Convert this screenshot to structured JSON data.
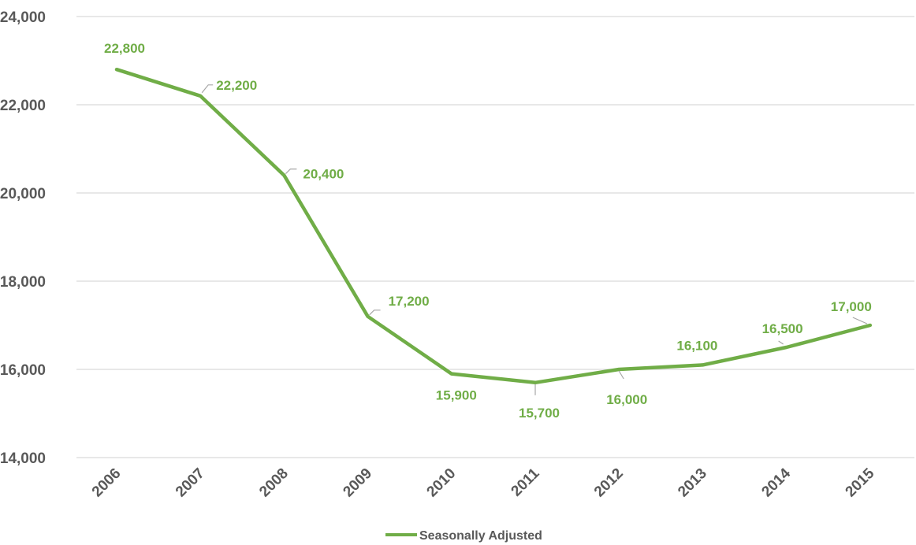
{
  "chart_data": {
    "type": "line",
    "categories": [
      "2006",
      "2007",
      "2008",
      "2009",
      "2010",
      "2011",
      "2012",
      "2013",
      "2014",
      "2015"
    ],
    "series": [
      {
        "name": "Seasonally Adjusted",
        "values": [
          22800,
          22200,
          20400,
          17200,
          15900,
          15700,
          16000,
          16100,
          16500,
          17000
        ],
        "data_labels": [
          "22,800",
          "22,200",
          "20,400",
          "17,200",
          "15,900",
          "15,700",
          "16,000",
          "16,100",
          "16,500",
          "17,000"
        ]
      }
    ],
    "ylim": [
      14000,
      24000
    ],
    "yticks": [
      14000,
      16000,
      18000,
      20000,
      22000,
      24000
    ],
    "ytick_labels": [
      "14,000",
      "16,000",
      "18,000",
      "20,000",
      "22,000",
      "24,000"
    ],
    "grid": "horizontal",
    "legend": "bottom-center",
    "title": "",
    "xlabel": "",
    "ylabel": "",
    "colors": {
      "series": "#70ad47",
      "grid": "#d9d9d9",
      "text": "#595959",
      "leader": "#a6a6a6"
    }
  }
}
